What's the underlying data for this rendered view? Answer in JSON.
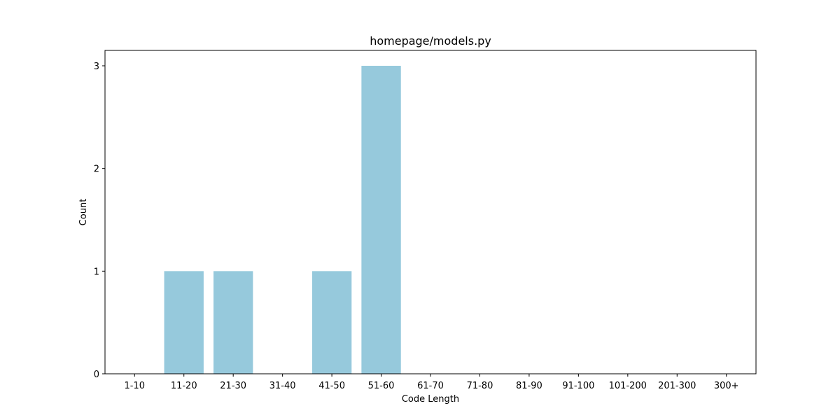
{
  "chart_data": {
    "type": "bar",
    "title": "homepage/models.py",
    "xlabel": "Code Length",
    "ylabel": "Count",
    "categories": [
      "1-10",
      "11-20",
      "21-30",
      "31-40",
      "41-50",
      "51-60",
      "61-70",
      "71-80",
      "81-90",
      "91-100",
      "101-200",
      "201-300",
      "300+"
    ],
    "values": [
      0,
      1,
      1,
      0,
      1,
      3,
      0,
      0,
      0,
      0,
      0,
      0,
      0
    ],
    "y_ticks": [
      0,
      1,
      2,
      3
    ],
    "ylim": [
      0,
      3.15
    ],
    "grid": false,
    "legend": "none",
    "bar_color": "#96c9dc"
  }
}
